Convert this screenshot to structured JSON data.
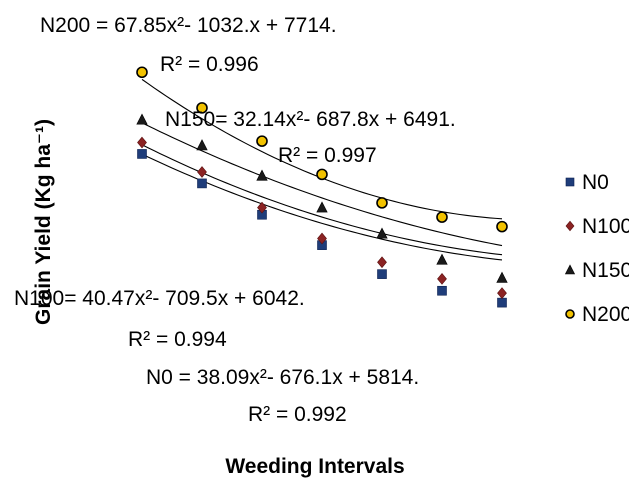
{
  "chart_data": {
    "type": "scatter",
    "xlabel": "Weeding Intervals",
    "ylabel": "Grain Yield (Kg ha⁻¹)",
    "x": [
      1,
      2,
      3,
      4,
      5,
      6,
      7
    ],
    "ylim": [
      0,
      8000
    ],
    "grid": false,
    "legend_position": "right",
    "series": [
      {
        "name": "N0",
        "marker": "square",
        "color": "#1f3d7a",
        "values": [
          5180,
          4560,
          3900,
          3260,
          2650,
          2300,
          2050
        ],
        "trend": [
          38.09,
          -676.1,
          5814
        ],
        "equation": "N0 = 38.09x²- 676.1x + 5814.",
        "r2": "R² = 0.992"
      },
      {
        "name": "N100",
        "marker": "diamond",
        "color": "#8b2323",
        "values": [
          5420,
          4800,
          4050,
          3400,
          2900,
          2550,
          2250
        ],
        "trend": [
          40.47,
          -709.5,
          6042
        ],
        "equation": "N100= 40.47x²- 709.5x + 6042.",
        "r2": "R² = 0.994"
      },
      {
        "name": "N150",
        "marker": "triangle",
        "color": "#1a1a1a",
        "values": [
          5900,
          5360,
          4720,
          4050,
          3500,
          2950,
          2570
        ],
        "trend": [
          32.14,
          -687.8,
          6491
        ],
        "equation": "N150= 32.14x²- 687.8x + 6491.",
        "r2": "R² = 0.997"
      },
      {
        "name": "N200",
        "marker": "circle",
        "color": "#f2c200",
        "values": [
          6900,
          6150,
          5450,
          4750,
          4150,
          3850,
          3650
        ],
        "trend": [
          67.85,
          -1032,
          7714
        ],
        "equation": "N200 = 67.85x²- 1032.x + 7714.",
        "r2": "R² = 0.996"
      }
    ]
  }
}
